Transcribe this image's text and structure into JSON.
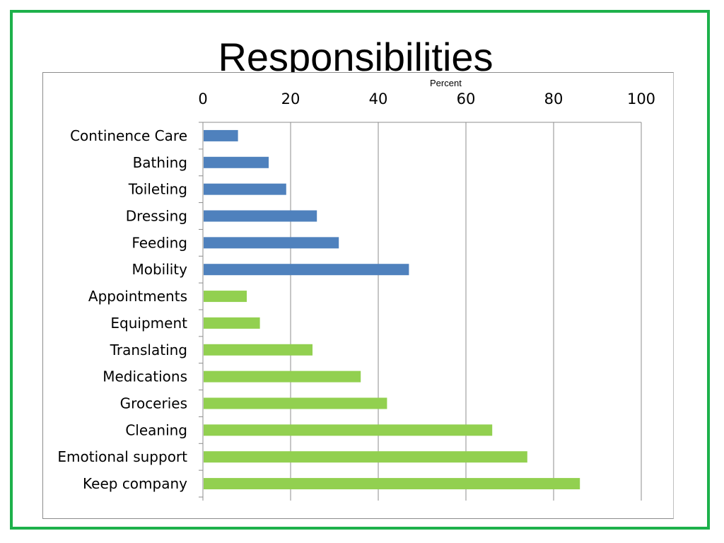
{
  "title": "Responsibilities",
  "chart_data": {
    "type": "bar",
    "orientation": "horizontal",
    "xlabel": "Percent",
    "ylabel": "",
    "xlim": [
      0,
      100
    ],
    "xticks": [
      "0",
      "20",
      "40",
      "60",
      "80",
      "100"
    ],
    "grid": true,
    "legend": "none",
    "categories": [
      "Continence Care",
      "Bathing",
      "Toileting",
      "Dressing",
      "Feeding",
      "Mobility",
      "Appointments",
      "Equipment",
      "Translating",
      "Medications",
      "Groceries",
      "Cleaning",
      "Emotional support",
      "Keep company"
    ],
    "values": [
      8,
      15,
      19,
      26,
      31,
      47,
      10,
      13,
      25,
      36,
      42,
      66,
      74,
      86
    ],
    "bar_colors": [
      "#4f81bd",
      "#4f81bd",
      "#4f81bd",
      "#4f81bd",
      "#4f81bd",
      "#4f81bd",
      "#92d050",
      "#92d050",
      "#92d050",
      "#92d050",
      "#92d050",
      "#92d050",
      "#92d050",
      "#92d050"
    ]
  },
  "colors": {
    "frame": "#1db14b",
    "grid": "#8c8c8c"
  }
}
